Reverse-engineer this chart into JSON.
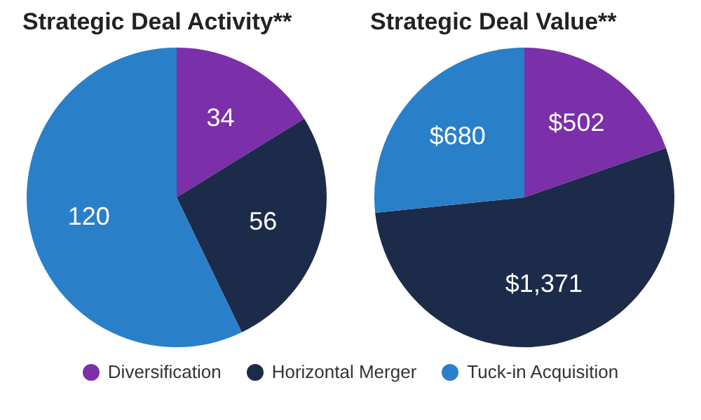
{
  "chart_data": [
    {
      "type": "pie",
      "title": "Strategic Deal Activity**",
      "categories": [
        "Diversification",
        "Horizontal Merger",
        "Tuck-in Acquisition"
      ],
      "values": [
        34,
        56,
        120
      ],
      "colors": [
        "#7b2fa8",
        "#1c2b4a",
        "#2a7fc9"
      ],
      "data_labels": true,
      "legend": "bottom"
    },
    {
      "type": "pie",
      "title": "Strategic Deal Value**",
      "categories": [
        null,
        null,
        null
      ],
      "values": [
        502,
        1371,
        680
      ],
      "colors": [
        "#7b2fa8",
        "#1c2b4a",
        "#2a7fc9"
      ],
      "value_labels": [
        "$502",
        "$1,371",
        "$680"
      ]
    }
  ]
}
